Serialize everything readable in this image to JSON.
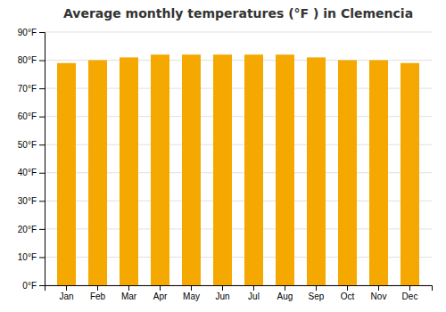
{
  "chart_data": {
    "type": "bar",
    "title": "Average monthly temperatures (°F ) in Clemencia",
    "categories": [
      "Jan",
      "Feb",
      "Mar",
      "Apr",
      "May",
      "Jun",
      "Jul",
      "Aug",
      "Sep",
      "Oct",
      "Nov",
      "Dec"
    ],
    "values": [
      79,
      80,
      81,
      82,
      82,
      82,
      82,
      82,
      81,
      80,
      80,
      79
    ],
    "color": "#F5A800",
    "ylim": [
      0,
      90
    ],
    "yticks": [
      {
        "value": 0,
        "label": "0°F"
      },
      {
        "value": 10,
        "label": "10°F"
      },
      {
        "value": 20,
        "label": "20°F"
      },
      {
        "value": 30,
        "label": "30°F"
      },
      {
        "value": 40,
        "label": "40°F"
      },
      {
        "value": 50,
        "label": "50°F"
      },
      {
        "value": 60,
        "label": "60°F"
      },
      {
        "value": 70,
        "label": "70°F"
      },
      {
        "value": 80,
        "label": "80°F"
      },
      {
        "value": 90,
        "label": "90°F"
      }
    ],
    "grid": true
  }
}
